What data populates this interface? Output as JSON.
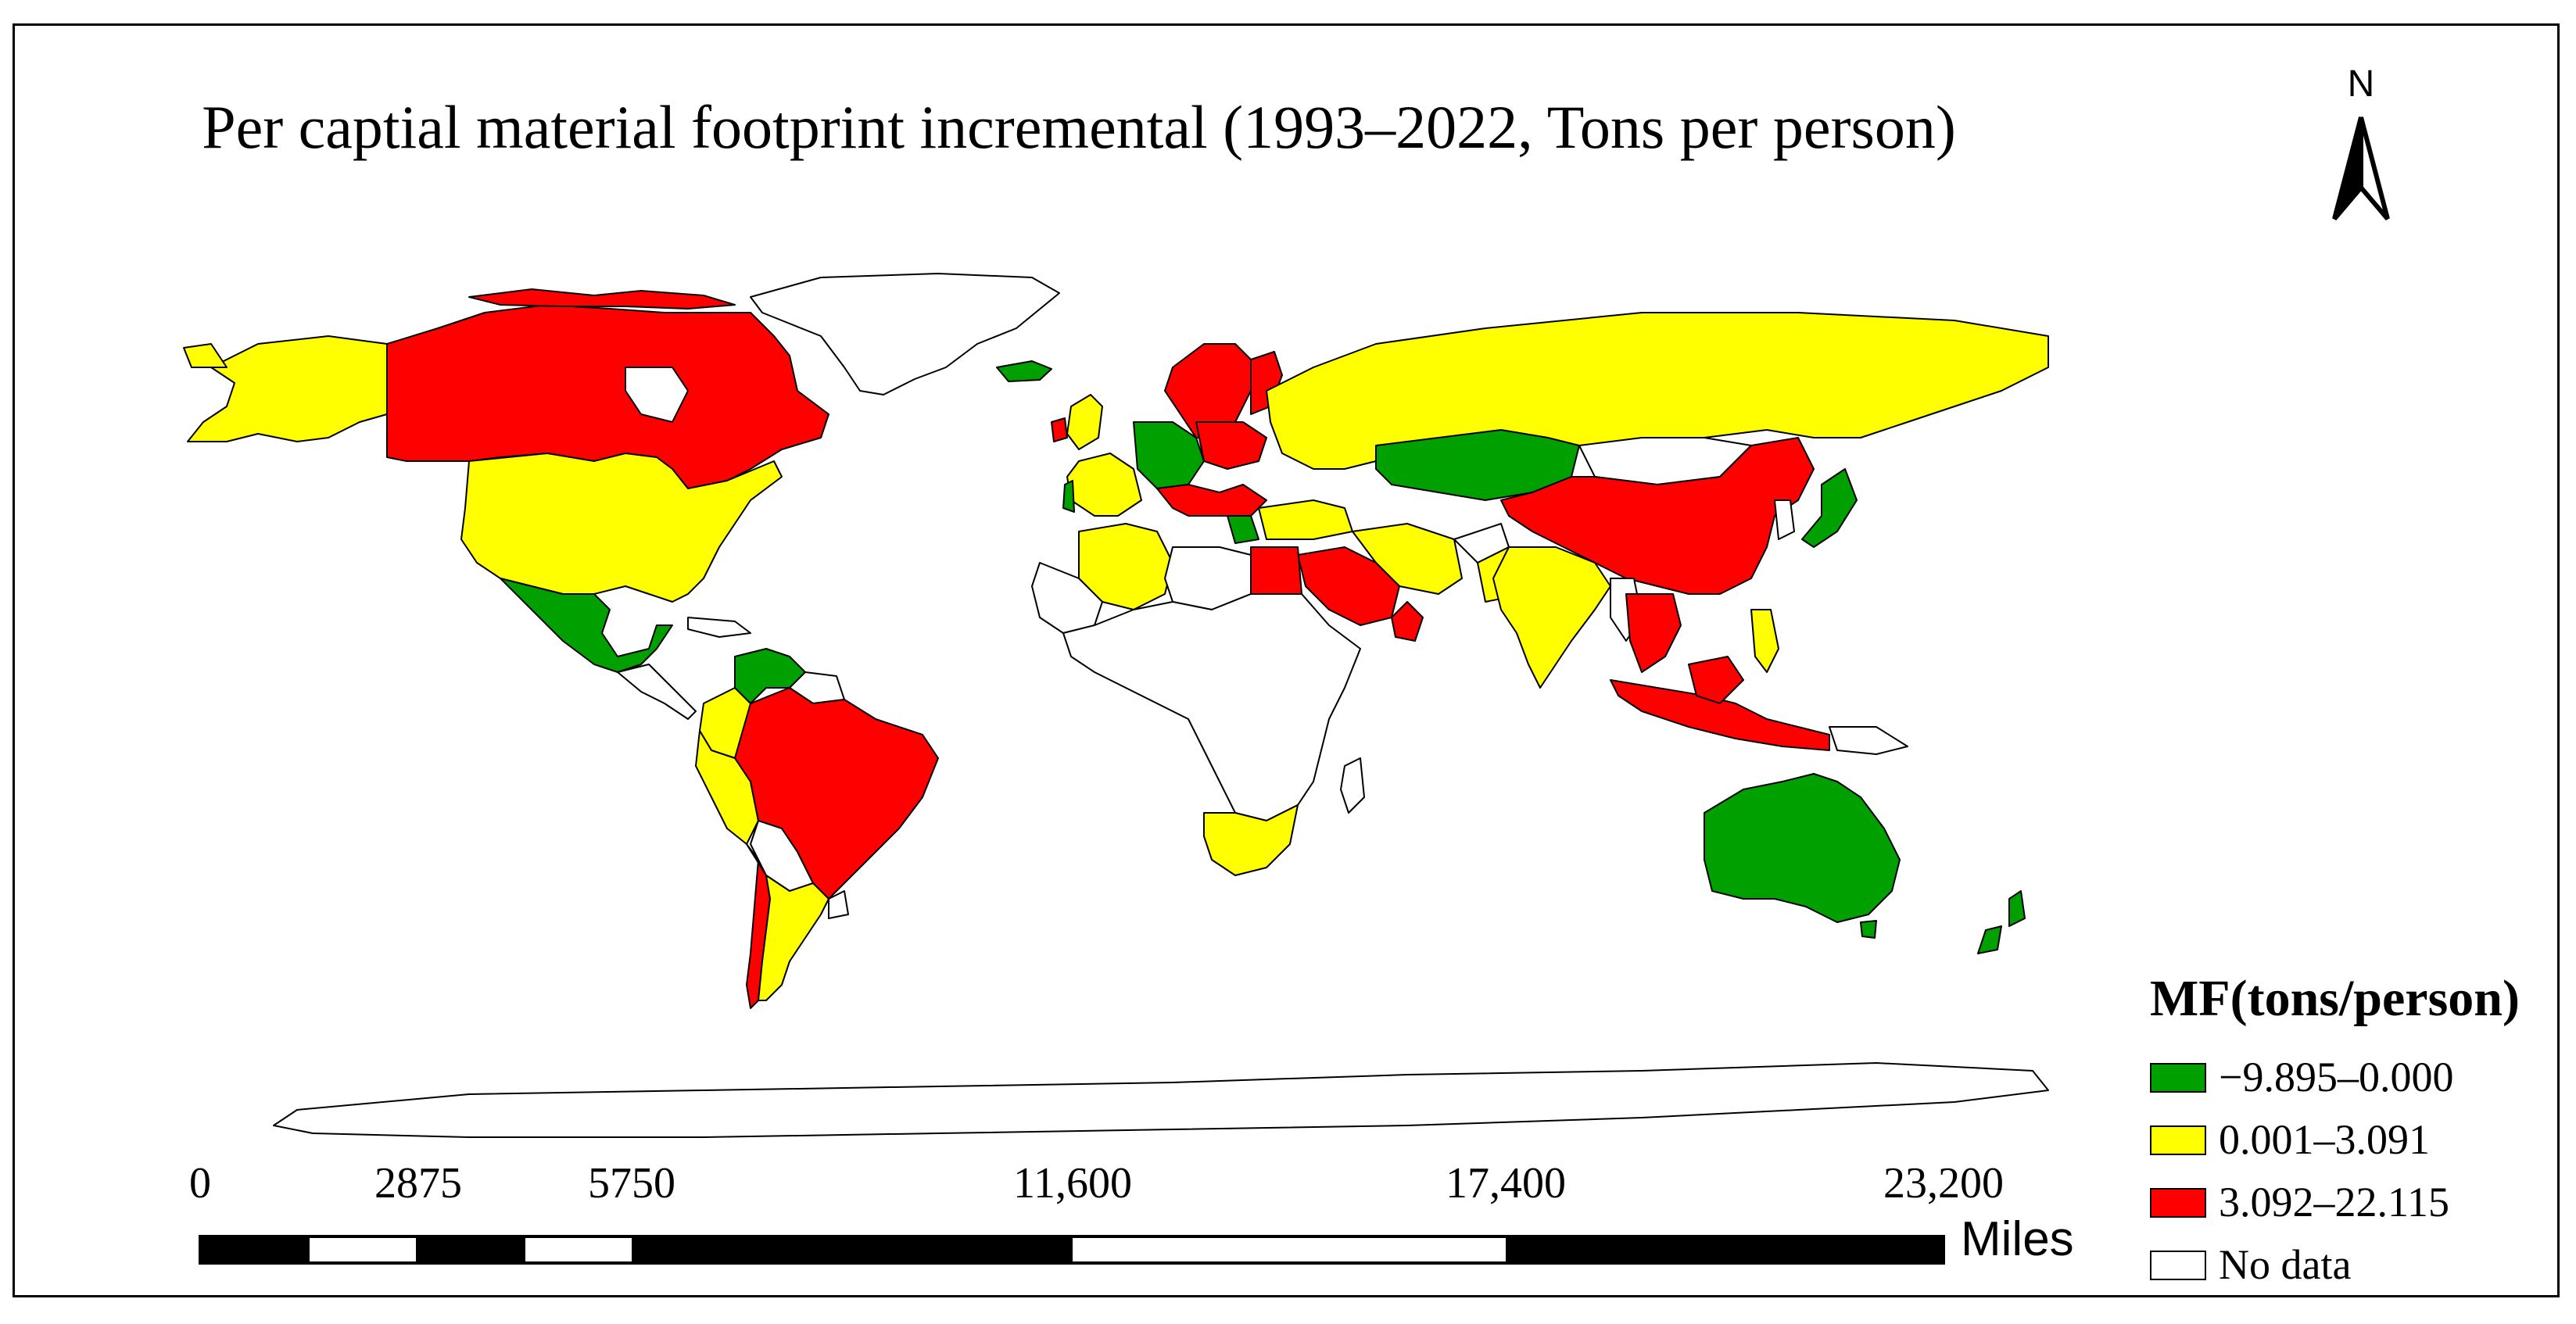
{
  "title": "Per captial material footprint incremental (1993–2022, Tons per person)",
  "north_arrow": {
    "label": "N"
  },
  "legend": {
    "title": "MF(tons/person)",
    "items": [
      {
        "label": "−9.895–0.000",
        "color": "#00a000"
      },
      {
        "label": "0.001–3.091",
        "color": "#ffff00"
      },
      {
        "label": "3.092–22.115",
        "color": "#ff0000"
      },
      {
        "label": "No data",
        "color": "#ffffff"
      }
    ]
  },
  "scale_bar": {
    "unit": "Miles",
    "ticks": [
      "0",
      "2875",
      "5750",
      "11,600",
      "17,400",
      "23,200"
    ]
  },
  "colors": {
    "decrease": "#00a000",
    "low_increase": "#ffff00",
    "high_increase": "#ff0000",
    "no_data": "#ffffff",
    "outline": "#000000",
    "land_edge": "#6e6e6e"
  }
}
